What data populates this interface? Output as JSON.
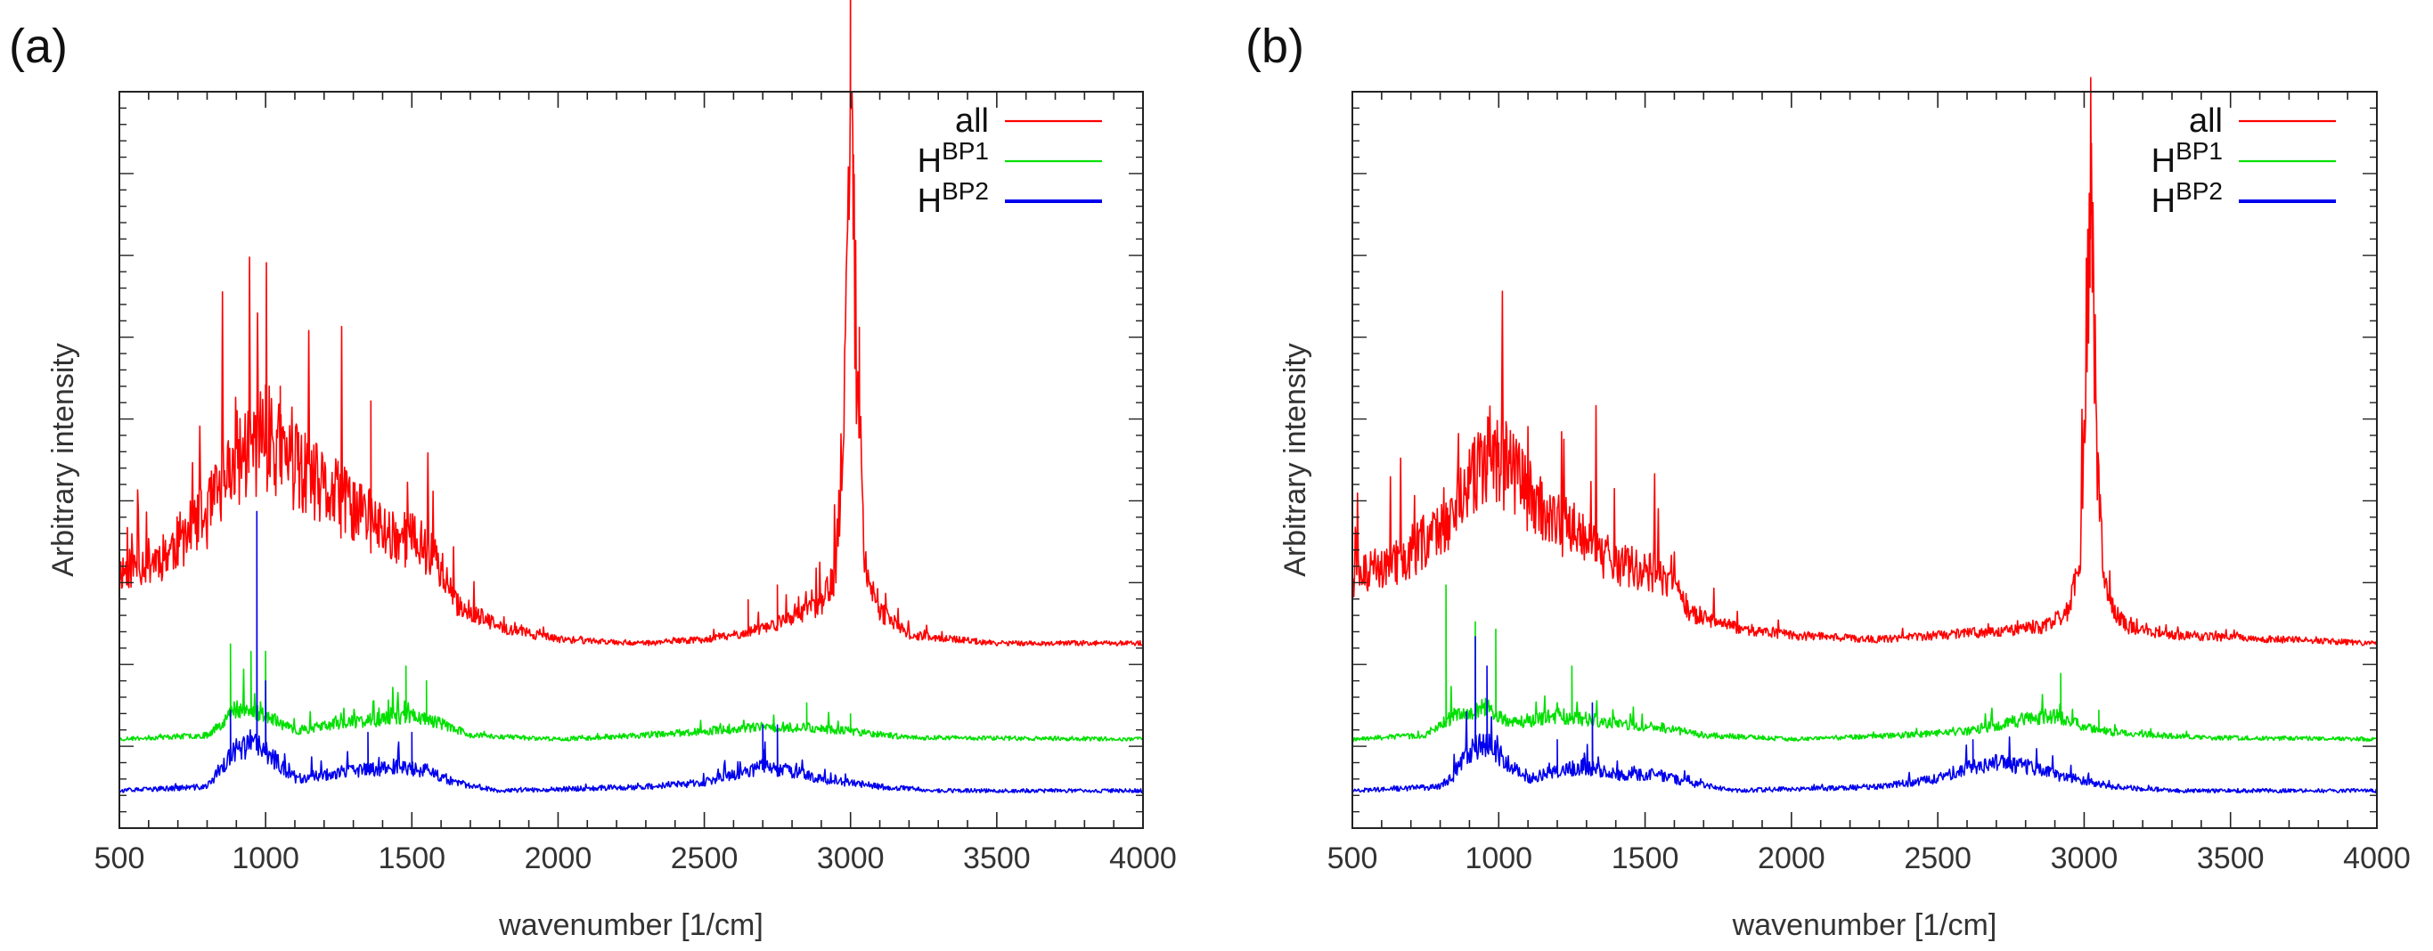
{
  "chart_data": [
    {
      "panel_label": "(a)",
      "type": "line",
      "title": "",
      "xlabel": "wavenumber [1/cm]",
      "ylabel": "Arbitrary intensity",
      "xlim": [
        500,
        4000
      ],
      "x_ticks": [
        500,
        1000,
        1500,
        2000,
        2500,
        3000,
        3500,
        4000
      ],
      "y_tick_labels": false,
      "grid": false,
      "legend": "top-right",
      "series": [
        {
          "name": "all",
          "color": "#ff0000",
          "baseline": 0.25,
          "shape": [
            [
              500,
              0.34
            ],
            [
              650,
              0.36
            ],
            [
              800,
              0.41
            ],
            [
              900,
              0.48
            ],
            [
              1000,
              0.51
            ],
            [
              1100,
              0.47
            ],
            [
              1200,
              0.44
            ],
            [
              1300,
              0.42
            ],
            [
              1400,
              0.39
            ],
            [
              1500,
              0.38
            ],
            [
              1580,
              0.36
            ],
            [
              1650,
              0.3
            ],
            [
              1800,
              0.27
            ],
            [
              2000,
              0.255
            ],
            [
              2300,
              0.25
            ],
            [
              2500,
              0.255
            ],
            [
              2600,
              0.26
            ],
            [
              2700,
              0.27
            ],
            [
              2800,
              0.28
            ],
            [
              2900,
              0.3
            ],
            [
              2950,
              0.34
            ],
            [
              2980,
              0.55
            ],
            [
              3000,
              0.98
            ],
            [
              3020,
              0.62
            ],
            [
              3050,
              0.35
            ],
            [
              3100,
              0.29
            ],
            [
              3200,
              0.26
            ],
            [
              3500,
              0.25
            ],
            [
              4000,
              0.25
            ]
          ],
          "spikes": [
            [
              1000,
              0.6
            ],
            [
              1050,
              0.6
            ],
            [
              1360,
              0.58
            ],
            [
              2650,
              0.31
            ],
            [
              2750,
              0.33
            ],
            [
              3000,
              1.0
            ],
            [
              3010,
              0.88
            ],
            [
              3030,
              0.68
            ]
          ]
        },
        {
          "name": "H^BP1",
          "color": "#00e000",
          "baseline": 0.12,
          "shape": [
            [
              500,
              0.12
            ],
            [
              800,
              0.125
            ],
            [
              850,
              0.14
            ],
            [
              900,
              0.16
            ],
            [
              1000,
              0.15
            ],
            [
              1100,
              0.13
            ],
            [
              1250,
              0.14
            ],
            [
              1400,
              0.145
            ],
            [
              1500,
              0.15
            ],
            [
              1600,
              0.14
            ],
            [
              1700,
              0.125
            ],
            [
              2000,
              0.12
            ],
            [
              2300,
              0.125
            ],
            [
              2500,
              0.13
            ],
            [
              2700,
              0.135
            ],
            [
              2850,
              0.135
            ],
            [
              3000,
              0.13
            ],
            [
              3200,
              0.122
            ],
            [
              4000,
              0.12
            ]
          ],
          "spikes": [
            [
              880,
              0.25
            ],
            [
              950,
              0.24
            ],
            [
              1000,
              0.24
            ],
            [
              1480,
              0.22
            ],
            [
              1550,
              0.2
            ],
            [
              2850,
              0.17
            ],
            [
              3000,
              0.155
            ]
          ]
        },
        {
          "name": "H^BP2",
          "color": "#0000ee",
          "baseline": 0.05,
          "shape": [
            [
              500,
              0.05
            ],
            [
              800,
              0.055
            ],
            [
              850,
              0.08
            ],
            [
              900,
              0.1
            ],
            [
              950,
              0.11
            ],
            [
              1000,
              0.1
            ],
            [
              1100,
              0.065
            ],
            [
              1200,
              0.07
            ],
            [
              1300,
              0.075
            ],
            [
              1450,
              0.08
            ],
            [
              1550,
              0.075
            ],
            [
              1650,
              0.06
            ],
            [
              1800,
              0.05
            ],
            [
              2300,
              0.055
            ],
            [
              2500,
              0.06
            ],
            [
              2600,
              0.07
            ],
            [
              2700,
              0.08
            ],
            [
              2800,
              0.075
            ],
            [
              2900,
              0.065
            ],
            [
              3100,
              0.055
            ],
            [
              3300,
              0.05
            ],
            [
              4000,
              0.05
            ]
          ],
          "spikes": [
            [
              970,
              0.43
            ],
            [
              1000,
              0.2
            ],
            [
              880,
              0.16
            ],
            [
              1350,
              0.13
            ],
            [
              1500,
              0.13
            ],
            [
              2700,
              0.14
            ],
            [
              2750,
              0.14
            ]
          ]
        }
      ]
    },
    {
      "panel_label": "(b)",
      "type": "line",
      "title": "",
      "xlabel": "wavenumber [1/cm]",
      "ylabel": "Arbitrary intensity",
      "xlim": [
        500,
        4000
      ],
      "x_ticks": [
        500,
        1000,
        1500,
        2000,
        2500,
        3000,
        3500,
        4000
      ],
      "y_tick_labels": false,
      "grid": false,
      "legend": "top-right",
      "series": [
        {
          "name": "all",
          "color": "#ff0000",
          "baseline": 0.25,
          "shape": [
            [
              500,
              0.33
            ],
            [
              700,
              0.36
            ],
            [
              850,
              0.42
            ],
            [
              950,
              0.48
            ],
            [
              1000,
              0.48
            ],
            [
              1100,
              0.44
            ],
            [
              1200,
              0.4
            ],
            [
              1300,
              0.38
            ],
            [
              1400,
              0.35
            ],
            [
              1500,
              0.34
            ],
            [
              1580,
              0.33
            ],
            [
              1650,
              0.29
            ],
            [
              1800,
              0.27
            ],
            [
              2000,
              0.26
            ],
            [
              2300,
              0.255
            ],
            [
              2500,
              0.26
            ],
            [
              2700,
              0.265
            ],
            [
              2850,
              0.27
            ],
            [
              2950,
              0.29
            ],
            [
              2990,
              0.38
            ],
            [
              3010,
              0.7
            ],
            [
              3025,
              0.85
            ],
            [
              3045,
              0.45
            ],
            [
              3080,
              0.3
            ],
            [
              3150,
              0.27
            ],
            [
              3300,
              0.26
            ],
            [
              4000,
              0.25
            ]
          ],
          "spikes": [
            [
              3025,
              0.93
            ],
            [
              3020,
              0.8
            ],
            [
              960,
              0.52
            ],
            [
              1080,
              0.45
            ]
          ]
        },
        {
          "name": "H^BP1",
          "color": "#00e000",
          "baseline": 0.12,
          "shape": [
            [
              500,
              0.12
            ],
            [
              750,
              0.125
            ],
            [
              850,
              0.15
            ],
            [
              950,
              0.16
            ],
            [
              1050,
              0.14
            ],
            [
              1200,
              0.15
            ],
            [
              1400,
              0.14
            ],
            [
              1550,
              0.135
            ],
            [
              1700,
              0.125
            ],
            [
              2000,
              0.12
            ],
            [
              2400,
              0.125
            ],
            [
              2600,
              0.13
            ],
            [
              2800,
              0.145
            ],
            [
              2900,
              0.15
            ],
            [
              3000,
              0.135
            ],
            [
              3100,
              0.128
            ],
            [
              3400,
              0.122
            ],
            [
              4000,
              0.12
            ]
          ],
          "spikes": [
            [
              820,
              0.33
            ],
            [
              920,
              0.28
            ],
            [
              990,
              0.27
            ],
            [
              1250,
              0.22
            ],
            [
              2920,
              0.21
            ],
            [
              3050,
              0.16
            ]
          ]
        },
        {
          "name": "H^BP2",
          "color": "#0000ee",
          "baseline": 0.05,
          "shape": [
            [
              500,
              0.05
            ],
            [
              800,
              0.055
            ],
            [
              850,
              0.07
            ],
            [
              900,
              0.1
            ],
            [
              950,
              0.11
            ],
            [
              1000,
              0.095
            ],
            [
              1100,
              0.065
            ],
            [
              1200,
              0.075
            ],
            [
              1300,
              0.08
            ],
            [
              1400,
              0.07
            ],
            [
              1550,
              0.07
            ],
            [
              1650,
              0.06
            ],
            [
              1800,
              0.05
            ],
            [
              2300,
              0.055
            ],
            [
              2500,
              0.065
            ],
            [
              2600,
              0.08
            ],
            [
              2700,
              0.085
            ],
            [
              2800,
              0.08
            ],
            [
              2900,
              0.07
            ],
            [
              3100,
              0.055
            ],
            [
              3300,
              0.05
            ],
            [
              4000,
              0.05
            ]
          ],
          "spikes": [
            [
              920,
              0.26
            ],
            [
              960,
              0.22
            ],
            [
              1320,
              0.17
            ],
            [
              1200,
              0.12
            ],
            [
              2620,
              0.12
            ]
          ]
        }
      ]
    }
  ]
}
